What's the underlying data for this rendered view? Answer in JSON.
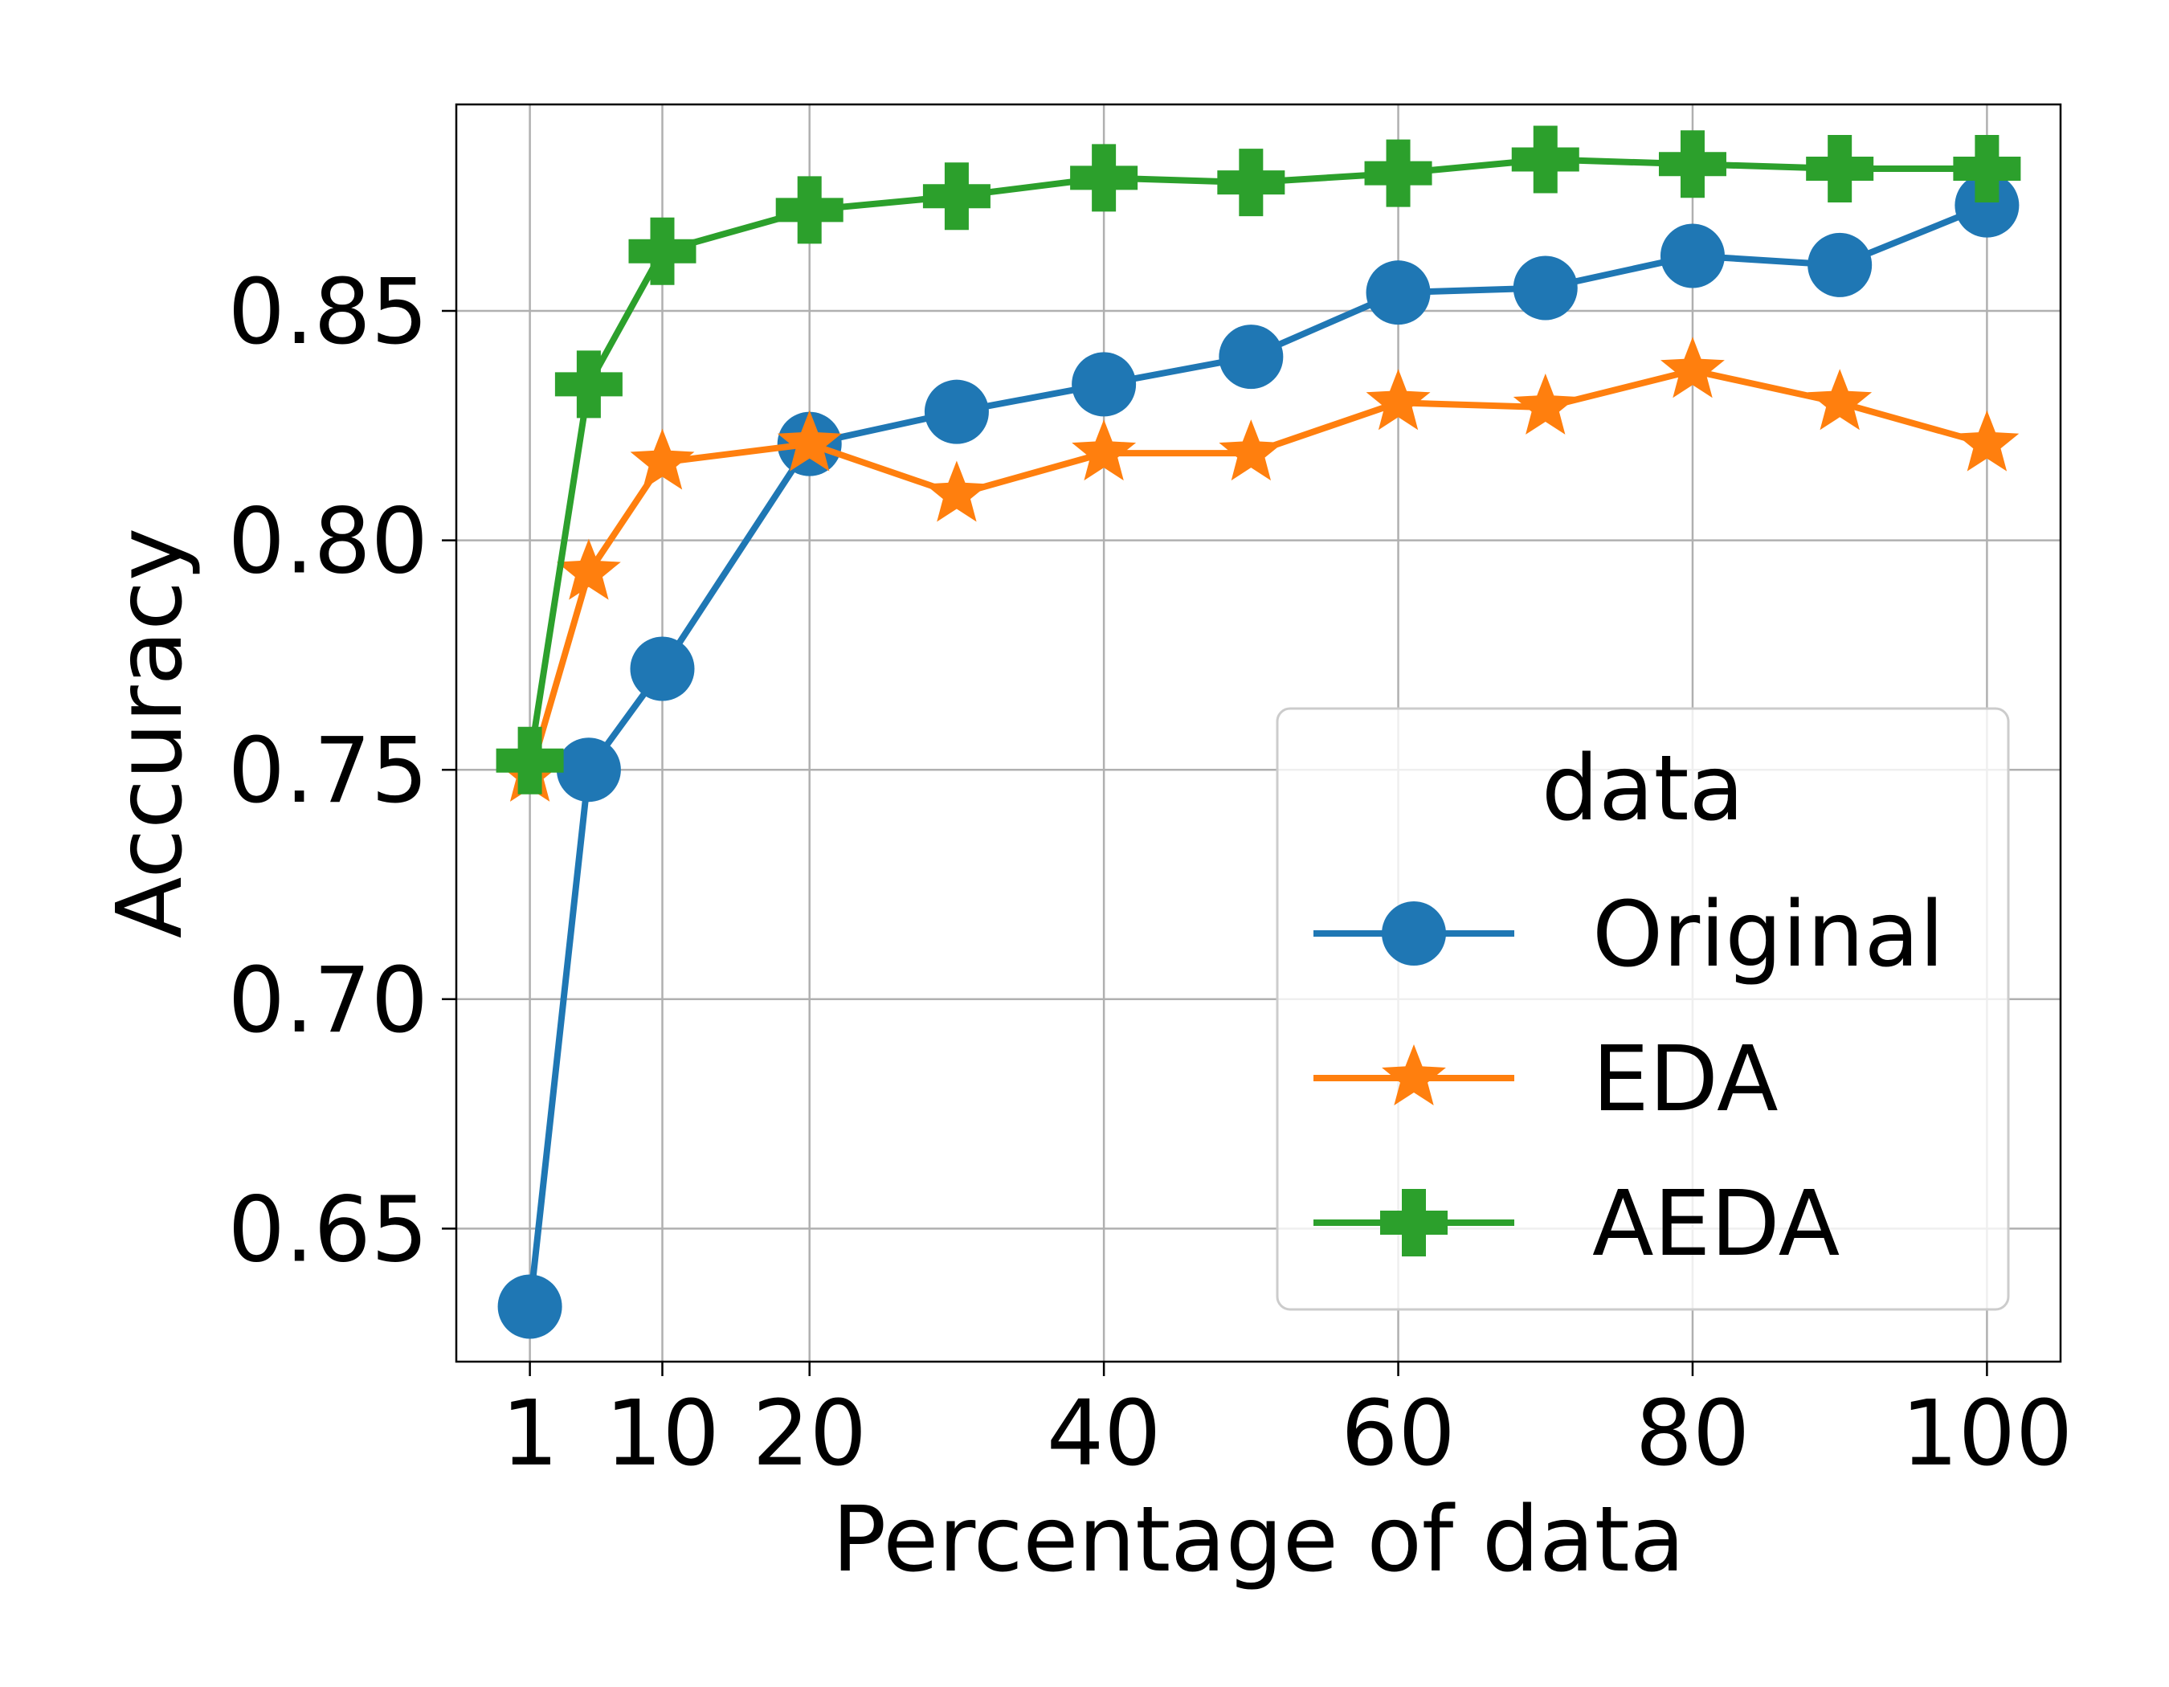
{
  "chart_data": {
    "type": "line",
    "title": "",
    "xlabel": "Percentage of data",
    "ylabel": "Accuracy",
    "xlim": [
      -4,
      105
    ],
    "ylim": [
      0.621,
      0.895
    ],
    "xticks": [
      1,
      10,
      20,
      40,
      60,
      80,
      100
    ],
    "yticks": [
      0.65,
      0.7,
      0.75,
      0.8,
      0.85
    ],
    "ytick_labels": [
      "0.65",
      "0.70",
      "0.75",
      "0.80",
      "0.85"
    ],
    "grid": true,
    "legend": {
      "title": "data",
      "position": "lower-right"
    },
    "x": [
      1,
      5,
      10,
      20,
      30,
      40,
      50,
      60,
      70,
      80,
      90,
      100
    ],
    "series": [
      {
        "name": "Original",
        "color": "#1f77b4",
        "marker": "circle",
        "values": [
          0.633,
          0.75,
          0.772,
          0.821,
          0.828,
          0.834,
          0.84,
          0.854,
          0.855,
          0.862,
          0.86,
          0.873
        ]
      },
      {
        "name": "EDA",
        "color": "#ff7f0e",
        "marker": "star",
        "values": [
          0.749,
          0.793,
          0.817,
          0.821,
          0.81,
          0.819,
          0.819,
          0.83,
          0.829,
          0.837,
          0.83,
          0.821
        ]
      },
      {
        "name": "AEDA",
        "color": "#2ca02c",
        "marker": "plus",
        "values": [
          0.752,
          0.834,
          0.863,
          0.872,
          0.875,
          0.879,
          0.878,
          0.88,
          0.883,
          0.882,
          0.881,
          0.881
        ]
      }
    ]
  }
}
